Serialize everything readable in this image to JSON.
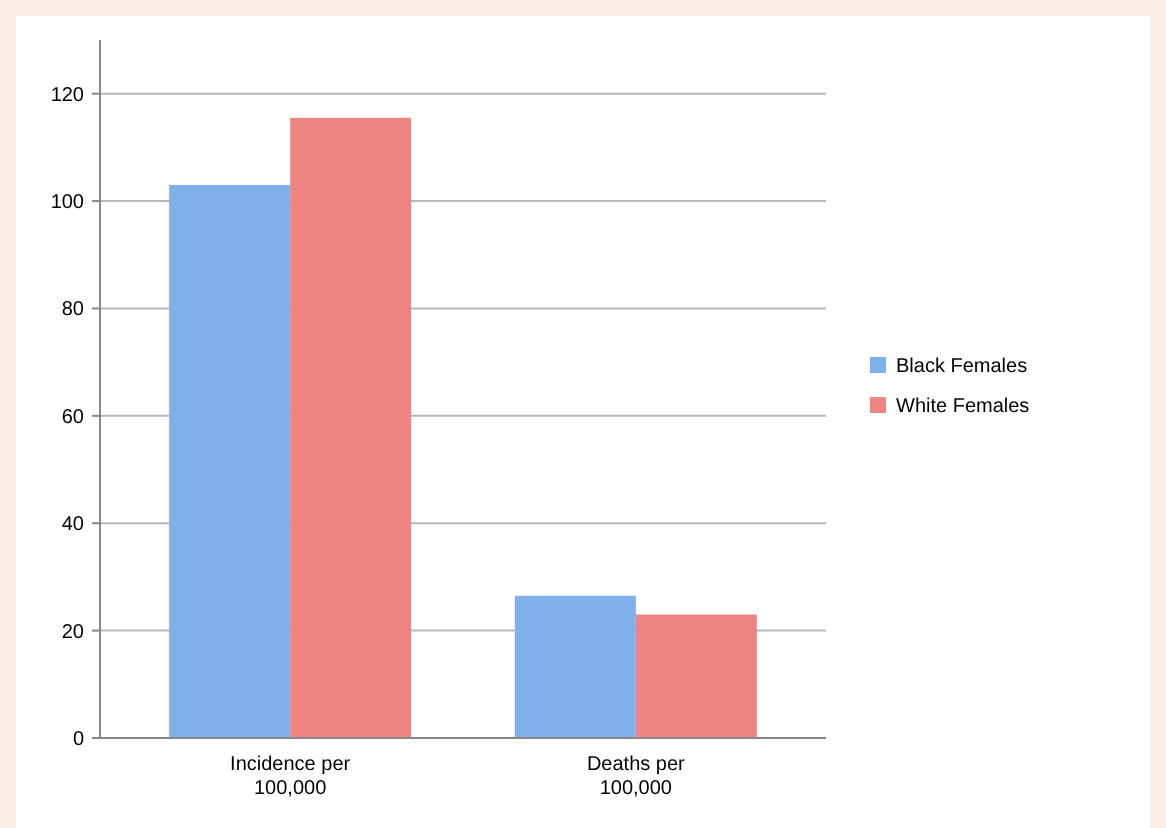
{
  "chart_data": {
    "type": "bar",
    "categories": [
      "Incidence per 100,000",
      "Deaths per 100,000"
    ],
    "series": [
      {
        "name": "Black Females",
        "color": "#7fb0ec",
        "values": [
          103,
          26.5
        ]
      },
      {
        "name": "White Females",
        "color": "#ee8583",
        "values": [
          115.5,
          23
        ]
      }
    ],
    "ylim": [
      0,
      130
    ],
    "yticks": [
      0,
      20,
      40,
      60,
      80,
      100,
      120
    ],
    "grid": "y",
    "legend": "right"
  }
}
